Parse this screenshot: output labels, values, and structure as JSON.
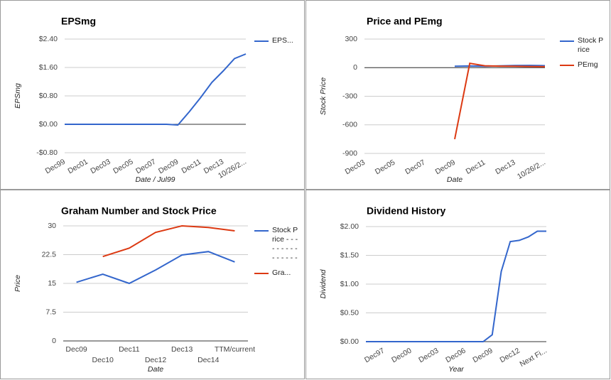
{
  "chart_data": [
    {
      "type": "line",
      "title": "EPSmg",
      "ylabel": "EPSmg",
      "xlabel": "Date / Jul99",
      "categories": [
        "Dec99",
        null,
        "Dec01",
        null,
        "Dec03",
        null,
        "Dec05",
        null,
        "Dec07",
        null,
        "Dec09",
        null,
        "Dec11",
        null,
        "Dec13",
        null,
        "10/26/2..."
      ],
      "series": [
        {
          "name": "EPS...",
          "color": "#3366cc",
          "values": [
            0,
            0,
            0,
            0,
            0,
            0,
            0,
            0,
            0,
            0,
            -0.02,
            0.35,
            0.75,
            1.18,
            1.5,
            1.85,
            1.98
          ]
        }
      ],
      "ylim": [
        -0.8,
        2.4
      ],
      "yticks": [
        {
          "value": -0.8,
          "label": "-$0.80"
        },
        {
          "value": 0,
          "label": "$0.00"
        },
        {
          "value": 0.8,
          "label": "$0.80"
        },
        {
          "value": 1.6,
          "label": "$1.60"
        },
        {
          "value": 2.4,
          "label": "$2.40"
        }
      ],
      "grid": true
    },
    {
      "type": "line",
      "title": "Price and PEmg",
      "ylabel": "Stock Price",
      "xlabel": "Date",
      "categories": [
        "Dec03",
        null,
        "Dec05",
        null,
        "Dec07",
        null,
        "Dec09",
        null,
        "Dec11",
        null,
        "Dec13",
        null,
        "10/26/2..."
      ],
      "series": [
        {
          "name": "Stock Price",
          "color": "#3366cc",
          "values": [
            null,
            null,
            null,
            null,
            null,
            null,
            15.3,
            17.4,
            15,
            18.5,
            22.4,
            23.3,
            20.6
          ]
        },
        {
          "name": "PEmg",
          "color": "#dc3912",
          "values": [
            null,
            null,
            null,
            null,
            null,
            null,
            -750,
            45,
            20,
            16,
            15,
            12.5,
            10.4
          ]
        }
      ],
      "ylim": [
        -900,
        300
      ],
      "yticks": [
        -900,
        -600,
        -300,
        0,
        300
      ],
      "grid": true
    },
    {
      "type": "line",
      "title": "Graham Number and Stock Price",
      "ylabel": "Price",
      "xlabel": "Date",
      "categories": [
        "Dec09",
        "Dec10",
        "Dec11",
        "Dec12",
        "Dec13",
        "Dec14",
        "TTM/current"
      ],
      "series": [
        {
          "name": "Stock Price - - - - - - - - - - - - - - -",
          "color": "#3366cc",
          "values": [
            15.3,
            17.4,
            15,
            18.5,
            22.4,
            23.3,
            20.6
          ]
        },
        {
          "name": "Gra...",
          "color": "#dc3912",
          "values": [
            null,
            22,
            24.2,
            28.3,
            30,
            29.6,
            28.7
          ]
        }
      ],
      "ylim": [
        0,
        30
      ],
      "yticks": [
        0,
        7.5,
        15,
        22.5,
        30
      ],
      "grid": true
    },
    {
      "type": "line",
      "title": "Dividend History",
      "ylabel": "Dividend",
      "xlabel": "Year",
      "categories": [
        null,
        null,
        "Dec97",
        null,
        null,
        "Dec00",
        null,
        null,
        "Dec03",
        null,
        null,
        "Dec06",
        null,
        null,
        "Dec09",
        null,
        null,
        "Dec12",
        null,
        null,
        "Next Fi..."
      ],
      "values": [
        0,
        0,
        0,
        0,
        0,
        0,
        0,
        0,
        0,
        0,
        0,
        0,
        0,
        0,
        0.12,
        1.22,
        1.74,
        1.76,
        1.82,
        1.92,
        1.92
      ],
      "color": "#3366cc",
      "ylim": [
        0,
        2
      ],
      "yticks": [
        {
          "value": 0,
          "label": "$0.00"
        },
        {
          "value": 0.5,
          "label": "$0.50"
        },
        {
          "value": 1,
          "label": "$1.00"
        },
        {
          "value": 1.5,
          "label": "$1.50"
        },
        {
          "value": 2,
          "label": "$2.00"
        }
      ],
      "grid": true
    }
  ]
}
